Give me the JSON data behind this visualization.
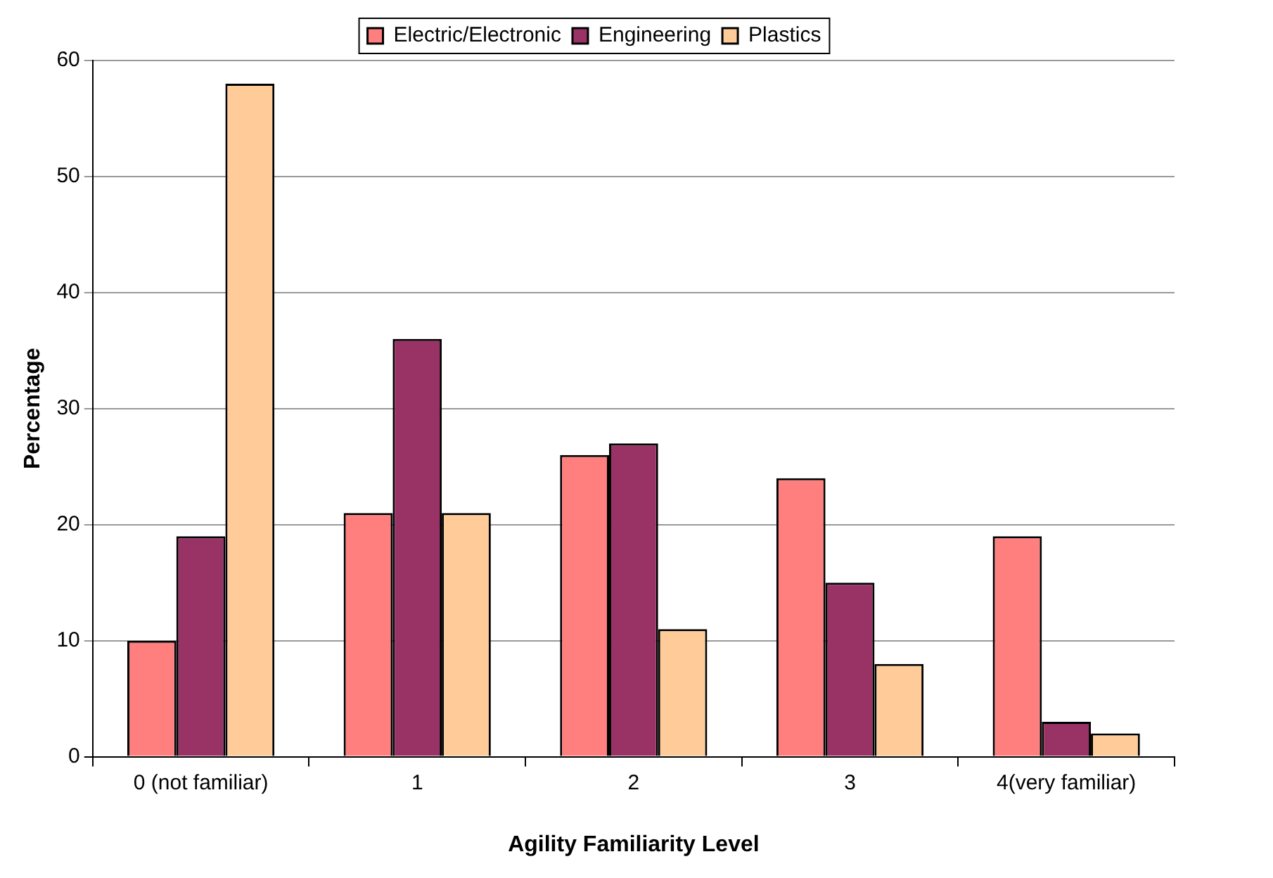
{
  "chart_data": {
    "type": "bar",
    "xlabel": "Agility Familiarity Level",
    "ylabel": "Percentage",
    "categories": [
      "0 (not familiar)",
      "1",
      "2",
      "3",
      "4(very familiar)"
    ],
    "series": [
      {
        "name": "Electric/Electronic",
        "color": "#ff7f7f",
        "values": [
          10,
          21,
          26,
          24,
          19
        ]
      },
      {
        "name": "Engineering",
        "color": "#993366",
        "values": [
          19,
          36,
          27,
          15,
          3
        ]
      },
      {
        "name": "Plastics",
        "color": "#ffcc99",
        "values": [
          58,
          21,
          11,
          8,
          2
        ]
      }
    ],
    "ylim": [
      0,
      60
    ],
    "yticks": [
      0,
      10,
      20,
      30,
      40,
      50,
      60
    ],
    "grid": "y",
    "legend": "top"
  }
}
